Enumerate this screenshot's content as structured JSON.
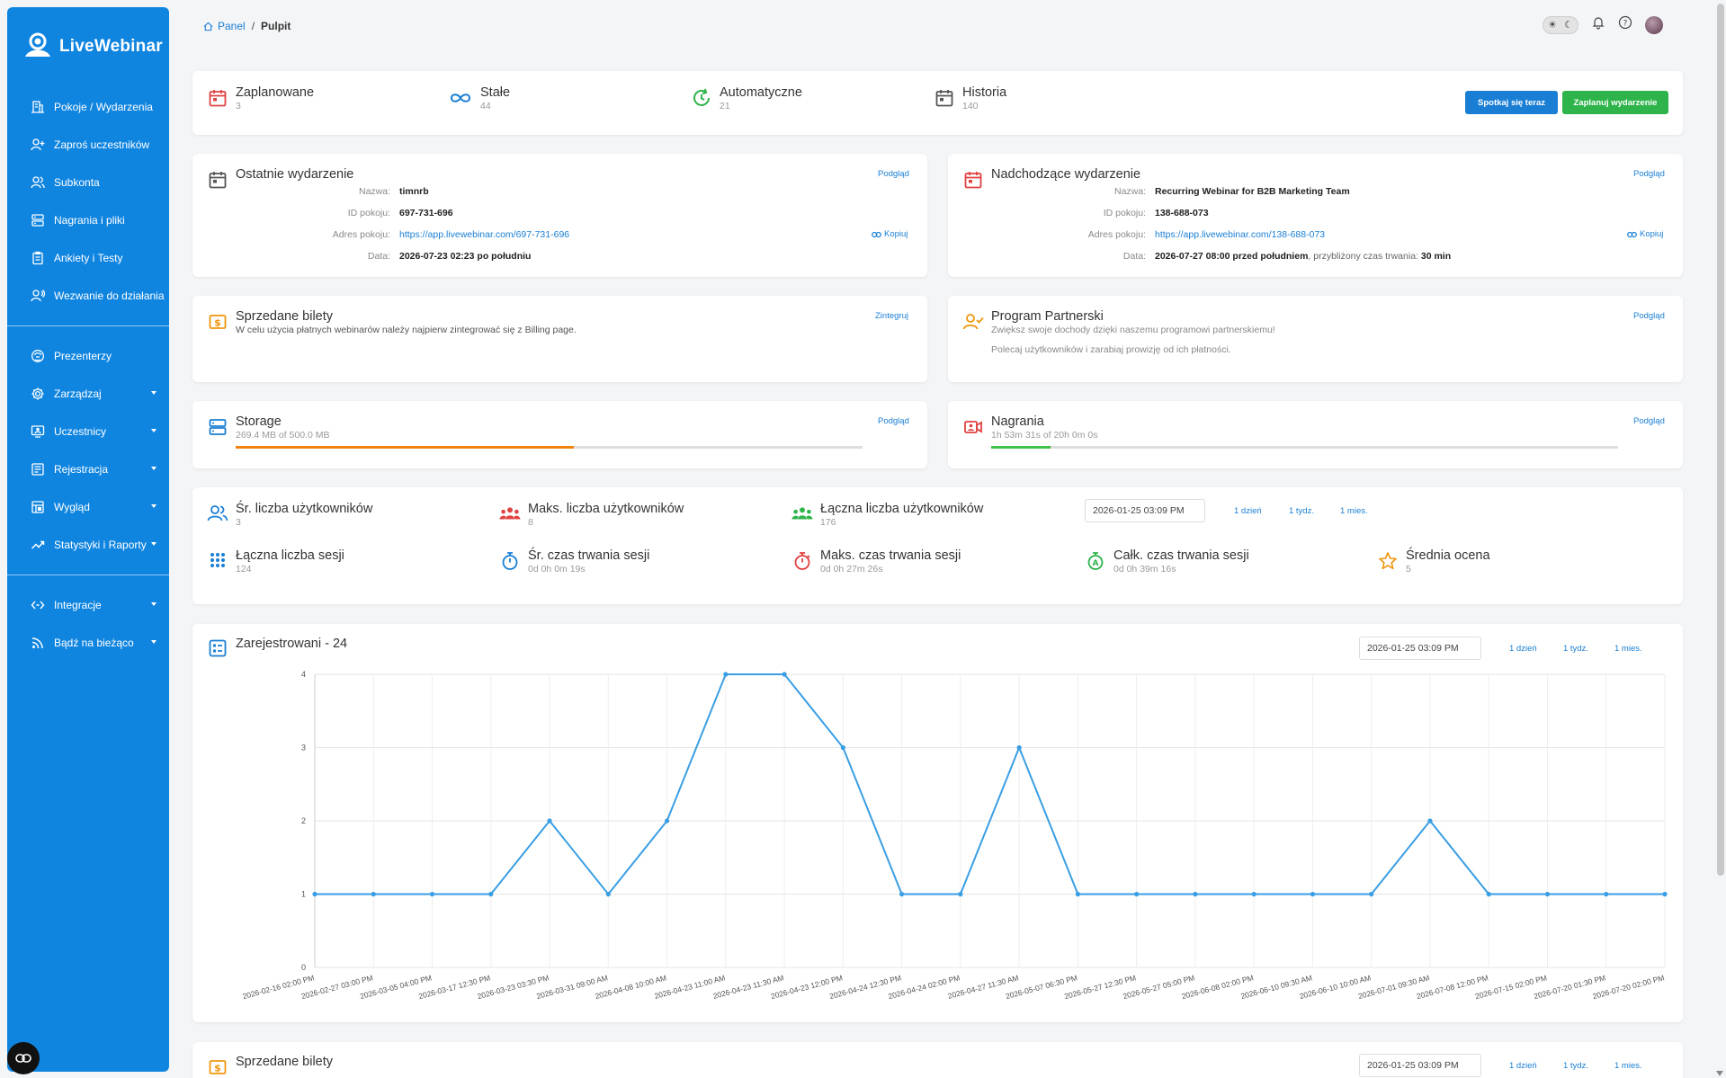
{
  "app": {
    "logo_text": "LiveWebinar"
  },
  "sidebar": {
    "items": [
      {
        "label": "Pokoje / Wydarzenia",
        "icon": "building-icon"
      },
      {
        "label": "Zaproś uczestników",
        "icon": "user-plus-icon"
      },
      {
        "label": "Subkonta",
        "icon": "users-icon"
      },
      {
        "label": "Nagrania i pliki",
        "icon": "server-icon"
      },
      {
        "label": "Ankiety i Testy",
        "icon": "clipboard-icon"
      },
      {
        "label": "Wezwanie do działania",
        "icon": "user-call-icon"
      }
    ],
    "items2": [
      {
        "label": "Prezenterzy",
        "icon": "presenter-icon"
      },
      {
        "label": "Zarządzaj",
        "icon": "gear-icon"
      },
      {
        "label": "Uczestnicy",
        "icon": "user-screen-icon"
      },
      {
        "label": "Rejestracja",
        "icon": "form-icon"
      },
      {
        "label": "Wygląd",
        "icon": "layout-icon"
      },
      {
        "label": "Statystyki i Raporty",
        "icon": "trend-icon"
      }
    ],
    "items3": [
      {
        "label": "Integracje",
        "icon": "code-arrows-icon"
      },
      {
        "label": "Bądź na bieżąco",
        "icon": "rss-icon"
      }
    ]
  },
  "breadcrumb": {
    "home": "Panel",
    "sep": "/",
    "current": "Pulpit"
  },
  "summary": {
    "stats": [
      {
        "label": "Zaplanowane",
        "value": "3"
      },
      {
        "label": "Stałe",
        "value": "44"
      },
      {
        "label": "Automatyczne",
        "value": "21"
      },
      {
        "label": "Historia",
        "value": "140"
      }
    ],
    "btn_meet_now": "Spotkaj się teraz",
    "btn_schedule": "Zaplanuj wydarzenie"
  },
  "last_event": {
    "title": "Ostatnie wydarzenie",
    "preview": "Podgląd",
    "copy": "Kopiuj",
    "labels": {
      "name": "Nazwa:",
      "room_id": "ID pokoju:",
      "room_url": "Adres pokoju:",
      "date": "Data:"
    },
    "name": "timnrb",
    "room_id": "697-731-696",
    "room_url": "https://app.livewebinar.com/697-731-696",
    "date": "2026-07-23 02:23 po południu"
  },
  "upcoming_event": {
    "title": "Nadchodzące wydarzenie",
    "preview": "Podgląd",
    "copy": "Kopiuj",
    "labels": {
      "name": "Nazwa:",
      "room_id": "ID pokoju:",
      "room_url": "Adres pokoju:",
      "date": "Data:"
    },
    "name": "Recurring Webinar for B2B Marketing Team",
    "room_id": "138-688-073",
    "room_url": "https://app.livewebinar.com/138-688-073",
    "date": "2026-07-27 08:00 przed południem",
    "duration_label": ", przybliżony czas trwania:",
    "duration": "30 min"
  },
  "tickets": {
    "title": "Sprzedane bilety",
    "link": "Zintegruj",
    "text": "W celu użycia płatnych webinarów należy najpierw zintegrować się z Billing page."
  },
  "partner": {
    "title": "Program Partnerski",
    "link": "Podgląd",
    "line1": "Zwiększ swoje dochody dzięki naszemu programowi partnerskiemu!",
    "line2": "Polecaj użytkowników i zarabiaj prowizję od ich płatności."
  },
  "storage": {
    "title": "Storage",
    "link": "Podgląd",
    "usage": "269.4 MB of 500.0 MB",
    "fraction": 0.539,
    "color": "#f0820f"
  },
  "recordings": {
    "title": "Nagrania",
    "link": "Podgląd",
    "usage": "1h 53m 31s of 20h 0m 0s",
    "fraction": 0.095,
    "color": "#3fc246"
  },
  "user_stats": {
    "date": "2026-01-25 03:09 PM",
    "ranges": [
      "1 dzień",
      "1 tydz.",
      "1 mies."
    ],
    "row1": [
      {
        "label": "Śr. liczba użytkowników",
        "value": "3",
        "icon": "users-outline-icon"
      },
      {
        "label": "Maks. liczba użytkowników",
        "value": "8",
        "icon": "users-group-red-icon"
      },
      {
        "label": "Łączna liczba użytkowników",
        "value": "176",
        "icon": "users-group-green-icon"
      }
    ],
    "row2": [
      {
        "label": "Łączna liczba sesji",
        "value": "124",
        "icon": "grid-dots-icon"
      },
      {
        "label": "Śr. czas trwania sesji",
        "value": "0d 0h 0m 19s",
        "icon": "stopwatch-icon"
      },
      {
        "label": "Maks. czas trwania sesji",
        "value": "0d 0h 27m 26s",
        "icon": "stopwatch-red-icon"
      },
      {
        "label": "Całk. czas trwania sesji",
        "value": "0d 0h 39m 16s",
        "icon": "stopwatch-green-icon"
      },
      {
        "label": "Średnia ocena",
        "value": "5",
        "icon": "star-icon"
      }
    ]
  },
  "registered": {
    "title": "Zarejestrowani - 24",
    "date": "2026-01-25 03:09 PM",
    "ranges": [
      "1 dzień",
      "1 tydz.",
      "1 mies."
    ]
  },
  "chart_data": {
    "type": "line",
    "title": "Zarejestrowani - 24",
    "color": "#3a9ee4",
    "x": [
      "2026-02-16 02:00 PM",
      "2026-02-27 03:00 PM",
      "2026-03-05 04:00 PM",
      "2026-03-17 12:30 PM",
      "2026-03-23 03:30 PM",
      "2026-03-31 09:00 AM",
      "2026-04-08 10:00 AM",
      "2026-04-23 11:00 AM",
      "2026-04-23 11:30 AM",
      "2026-04-23 12:00 PM",
      "2026-04-24 12:30 PM",
      "2026-04-24 02:00 PM",
      "2026-04-27 11:30 AM",
      "2026-05-07 06:30 PM",
      "2026-05-27 12:30 PM",
      "2026-05-27 05:00 PM",
      "2026-06-08 02:00 PM",
      "2026-06-10 09:30 AM",
      "2026-06-10 10:00 AM",
      "2026-07-01 09:30 AM",
      "2026-07-08 12:00 PM",
      "2026-07-15 02:00 PM",
      "2026-07-20 01:30 PM",
      "2026-07-20 02:00 PM"
    ],
    "values": [
      1,
      1,
      1,
      1,
      2,
      1,
      2,
      4,
      4,
      3,
      1,
      1,
      3,
      1,
      1,
      1,
      1,
      1,
      1,
      2,
      1,
      1,
      1,
      1
    ],
    "ylim": [
      0,
      4
    ],
    "yticks": [
      "0",
      "1",
      "2",
      "3",
      "4"
    ],
    "grid": true
  },
  "tickets_bottom": {
    "title": "Sprzedane bilety",
    "date": "2026-01-25 03:09 PM",
    "ranges": [
      "1 dzień",
      "1 tydz.",
      "1 mies."
    ]
  }
}
